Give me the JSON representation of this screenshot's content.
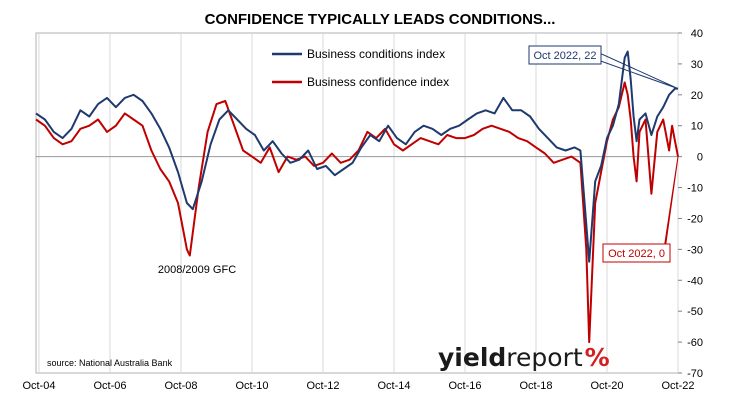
{
  "chart_data": {
    "type": "line",
    "title": "CONFIDENCE TYPICALLY LEADS CONDITIONS...",
    "x_tick_labels": [
      "Oct-04",
      "Oct-06",
      "Oct-08",
      "Oct-10",
      "Oct-12",
      "Oct-14",
      "Oct-16",
      "Oct-18",
      "Oct-20",
      "Oct-22"
    ],
    "x_range": [
      "2004-09",
      "2022-10"
    ],
    "ylim": [
      -70,
      40
    ],
    "y_ticks": [
      40,
      30,
      20,
      10,
      0,
      -10,
      -20,
      -30,
      -40,
      -50,
      -60,
      -70
    ],
    "y_axis_side": "right",
    "grid": "vertical",
    "legend_position": "top-center",
    "series": [
      {
        "name": "Business conditions index",
        "color": "#1f3a6e",
        "points": [
          [
            "2004-09",
            14
          ],
          [
            "2004-12",
            12
          ],
          [
            "2005-03",
            8
          ],
          [
            "2005-06",
            6
          ],
          [
            "2005-09",
            9
          ],
          [
            "2005-12",
            15
          ],
          [
            "2006-03",
            13
          ],
          [
            "2006-06",
            17
          ],
          [
            "2006-09",
            19
          ],
          [
            "2006-12",
            16
          ],
          [
            "2007-03",
            19
          ],
          [
            "2007-06",
            20
          ],
          [
            "2007-09",
            18
          ],
          [
            "2007-12",
            14
          ],
          [
            "2008-03",
            9
          ],
          [
            "2008-06",
            3
          ],
          [
            "2008-09",
            -5
          ],
          [
            "2008-12",
            -15
          ],
          [
            "2009-02",
            -17
          ],
          [
            "2009-05",
            -8
          ],
          [
            "2009-08",
            4
          ],
          [
            "2009-11",
            12
          ],
          [
            "2010-02",
            15
          ],
          [
            "2010-05",
            12
          ],
          [
            "2010-08",
            9
          ],
          [
            "2010-11",
            7
          ],
          [
            "2011-02",
            2
          ],
          [
            "2011-05",
            5
          ],
          [
            "2011-08",
            1
          ],
          [
            "2011-11",
            -2
          ],
          [
            "2012-02",
            -1
          ],
          [
            "2012-05",
            2
          ],
          [
            "2012-08",
            -4
          ],
          [
            "2012-11",
            -3
          ],
          [
            "2013-02",
            -6
          ],
          [
            "2013-05",
            -4
          ],
          [
            "2013-08",
            -2
          ],
          [
            "2013-11",
            3
          ],
          [
            "2014-02",
            7
          ],
          [
            "2014-05",
            5
          ],
          [
            "2014-08",
            10
          ],
          [
            "2014-11",
            6
          ],
          [
            "2015-02",
            4
          ],
          [
            "2015-05",
            8
          ],
          [
            "2015-08",
            10
          ],
          [
            "2015-11",
            9
          ],
          [
            "2016-02",
            7
          ],
          [
            "2016-05",
            9
          ],
          [
            "2016-08",
            10
          ],
          [
            "2016-11",
            12
          ],
          [
            "2017-02",
            14
          ],
          [
            "2017-05",
            15
          ],
          [
            "2017-08",
            14
          ],
          [
            "2017-11",
            19
          ],
          [
            "2018-02",
            15
          ],
          [
            "2018-05",
            15
          ],
          [
            "2018-08",
            13
          ],
          [
            "2018-11",
            9
          ],
          [
            "2019-02",
            6
          ],
          [
            "2019-05",
            3
          ],
          [
            "2019-08",
            2
          ],
          [
            "2019-11",
            3
          ],
          [
            "2020-01",
            2
          ],
          [
            "2020-03",
            -22
          ],
          [
            "2020-04",
            -34
          ],
          [
            "2020-06",
            -8
          ],
          [
            "2020-08",
            -3
          ],
          [
            "2020-10",
            6
          ],
          [
            "2020-12",
            10
          ],
          [
            "2021-02",
            17
          ],
          [
            "2021-04",
            32
          ],
          [
            "2021-05",
            34
          ],
          [
            "2021-06",
            25
          ],
          [
            "2021-07",
            13
          ],
          [
            "2021-08",
            5
          ],
          [
            "2021-09",
            12
          ],
          [
            "2021-11",
            14
          ],
          [
            "2022-01",
            7
          ],
          [
            "2022-03",
            13
          ],
          [
            "2022-05",
            16
          ],
          [
            "2022-07",
            20
          ],
          [
            "2022-09",
            22
          ],
          [
            "2022-10",
            22
          ]
        ]
      },
      {
        "name": "Business confidence index",
        "color": "#c00000",
        "points": [
          [
            "2004-09",
            12
          ],
          [
            "2004-12",
            10
          ],
          [
            "2005-03",
            6
          ],
          [
            "2005-06",
            4
          ],
          [
            "2005-09",
            5
          ],
          [
            "2005-12",
            9
          ],
          [
            "2006-03",
            10
          ],
          [
            "2006-06",
            12
          ],
          [
            "2006-09",
            8
          ],
          [
            "2006-12",
            10
          ],
          [
            "2007-03",
            14
          ],
          [
            "2007-06",
            12
          ],
          [
            "2007-09",
            10
          ],
          [
            "2007-12",
            2
          ],
          [
            "2008-03",
            -4
          ],
          [
            "2008-06",
            -8
          ],
          [
            "2008-09",
            -15
          ],
          [
            "2008-12",
            -30
          ],
          [
            "2009-01",
            -32
          ],
          [
            "2009-04",
            -10
          ],
          [
            "2009-07",
            8
          ],
          [
            "2009-10",
            17
          ],
          [
            "2010-01",
            18
          ],
          [
            "2010-04",
            10
          ],
          [
            "2010-07",
            2
          ],
          [
            "2010-10",
            0
          ],
          [
            "2011-01",
            -2
          ],
          [
            "2011-04",
            3
          ],
          [
            "2011-07",
            -5
          ],
          [
            "2011-10",
            0
          ],
          [
            "2012-01",
            -1
          ],
          [
            "2012-04",
            0
          ],
          [
            "2012-07",
            -3
          ],
          [
            "2012-10",
            -2
          ],
          [
            "2013-01",
            1
          ],
          [
            "2013-04",
            -2
          ],
          [
            "2013-07",
            -1
          ],
          [
            "2013-10",
            2
          ],
          [
            "2014-01",
            8
          ],
          [
            "2014-04",
            6
          ],
          [
            "2014-07",
            9
          ],
          [
            "2014-10",
            4
          ],
          [
            "2015-01",
            2
          ],
          [
            "2015-04",
            4
          ],
          [
            "2015-07",
            6
          ],
          [
            "2015-10",
            5
          ],
          [
            "2016-01",
            4
          ],
          [
            "2016-04",
            7
          ],
          [
            "2016-07",
            6
          ],
          [
            "2016-10",
            6
          ],
          [
            "2017-01",
            7
          ],
          [
            "2017-04",
            9
          ],
          [
            "2017-07",
            10
          ],
          [
            "2017-10",
            9
          ],
          [
            "2018-01",
            8
          ],
          [
            "2018-04",
            6
          ],
          [
            "2018-07",
            5
          ],
          [
            "2018-10",
            3
          ],
          [
            "2019-01",
            1
          ],
          [
            "2019-04",
            -2
          ],
          [
            "2019-07",
            -1
          ],
          [
            "2019-10",
            0
          ],
          [
            "2020-01",
            -2
          ],
          [
            "2020-03",
            -30
          ],
          [
            "2020-04",
            -60
          ],
          [
            "2020-06",
            -15
          ],
          [
            "2020-08",
            -5
          ],
          [
            "2020-10",
            5
          ],
          [
            "2020-12",
            12
          ],
          [
            "2021-02",
            16
          ],
          [
            "2021-04",
            24
          ],
          [
            "2021-05",
            20
          ],
          [
            "2021-06",
            12
          ],
          [
            "2021-07",
            0
          ],
          [
            "2021-08",
            -8
          ],
          [
            "2021-09",
            8
          ],
          [
            "2021-11",
            12
          ],
          [
            "2022-01",
            -12
          ],
          [
            "2022-03",
            8
          ],
          [
            "2022-05",
            12
          ],
          [
            "2022-07",
            2
          ],
          [
            "2022-08",
            10
          ],
          [
            "2022-09",
            5
          ],
          [
            "2022-10",
            0
          ]
        ]
      }
    ],
    "annotations": [
      {
        "text": "2008/2009 GFC"
      },
      {
        "text": "source: National Australia Bank"
      }
    ],
    "callouts": [
      {
        "text": "Oct 2022, 22",
        "series": "Business conditions index",
        "date": "2022-10",
        "value": 22
      },
      {
        "text": "Oct 2022, 0",
        "series": "Business confidence index",
        "date": "2022-10",
        "value": 0
      }
    ]
  },
  "logo": {
    "part1": "yield",
    "part2": "report",
    "part3": "%"
  }
}
